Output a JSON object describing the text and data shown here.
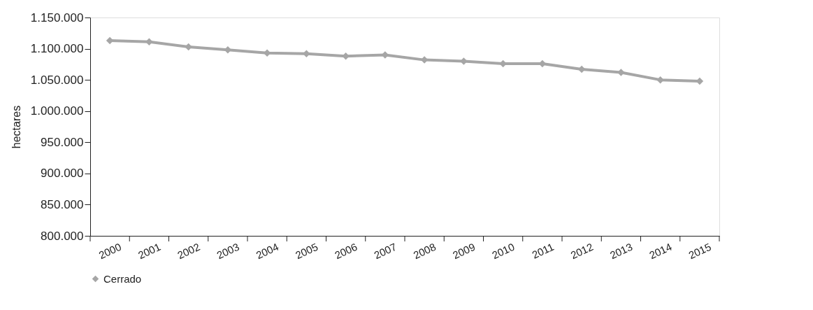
{
  "chart_data": {
    "type": "line",
    "ylabel": "hectares",
    "categories": [
      "2000",
      "2001",
      "2002",
      "2003",
      "2004",
      "2005",
      "2006",
      "2007",
      "2008",
      "2009",
      "2010",
      "2011",
      "2012",
      "2013",
      "2014",
      "2015"
    ],
    "series": [
      {
        "name": "Cerrado",
        "color": "#a6a6a6",
        "values": [
          1113000,
          1111000,
          1103000,
          1098000,
          1093000,
          1092000,
          1088000,
          1090000,
          1082000,
          1080000,
          1076000,
          1076000,
          1067000,
          1062000,
          1050000,
          1048000
        ]
      }
    ],
    "ylim": [
      800000,
      1150000
    ],
    "yticks": [
      {
        "value": 800000,
        "label": "800.000"
      },
      {
        "value": 850000,
        "label": "850.000"
      },
      {
        "value": 900000,
        "label": "900.000"
      },
      {
        "value": 950000,
        "label": "950.000"
      },
      {
        "value": 1000000,
        "label": "1.000.000"
      },
      {
        "value": 1050000,
        "label": "1.050.000"
      },
      {
        "value": 1100000,
        "label": "1.100.000"
      },
      {
        "value": 1150000,
        "label": "1.150.000"
      }
    ],
    "grid": false,
    "legend": "bottom",
    "marker": "diamond",
    "line_style": "solid"
  }
}
